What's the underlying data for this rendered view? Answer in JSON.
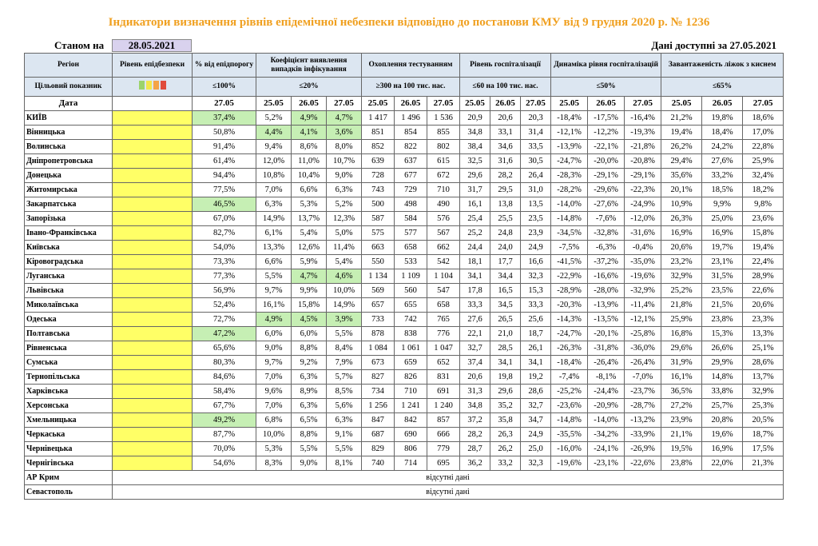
{
  "header": {
    "title": "Індикатори визначення рівнів епідемічної небезпеки відповідно до постанови КМУ від 9 грудня 2020 р. № 1236",
    "as_of_label": "Станом на",
    "as_of_date": "28.05.2021",
    "available_label": "Дані доступні за",
    "available_date": "27.05.2021"
  },
  "table": {
    "region_header": "Регіон",
    "target_header": "Цільовий показник",
    "date_header": "Дата",
    "level_header": "Рівень епідбезпеки",
    "groups": [
      {
        "title": "% від епідпорогу",
        "target": "≤100%",
        "dates": [
          "27.05"
        ]
      },
      {
        "title": "Коефіцієнт виявлення випадків інфікування",
        "target": "≤20%",
        "dates": [
          "25.05",
          "26.05",
          "27.05"
        ]
      },
      {
        "title": "Охоплення тестуванням",
        "target": "≥300 на 100 тис. нас.",
        "dates": [
          "25.05",
          "26.05",
          "27.05"
        ]
      },
      {
        "title": "Рівень госпіталізації",
        "target": "≤60 на 100 тис. нас.",
        "dates": [
          "25.05",
          "26.05",
          "27.05"
        ]
      },
      {
        "title": "Динаміка рівня госпіталізацій",
        "target": "≤50%",
        "dates": [
          "25.05",
          "26.05",
          "27.05"
        ]
      },
      {
        "title": "Завантаженість ліжок з киснем",
        "target": "≤65%",
        "dates": [
          "25.05",
          "26.05",
          "27.05"
        ]
      }
    ],
    "rows": [
      {
        "region": "КИЇВ",
        "values": [
          "37,4%",
          "5,2%",
          "4,9%",
          "4,7%",
          "1 417",
          "1 496",
          "1 536",
          "20,9",
          "20,6",
          "20,3",
          "-18,4%",
          "-17,5%",
          "-16,4%",
          "21,2%",
          "19,8%",
          "18,6%"
        ]
      },
      {
        "region": "Вінницька",
        "values": [
          "50,8%",
          "4,4%",
          "4,1%",
          "3,6%",
          "851",
          "854",
          "855",
          "34,8",
          "33,1",
          "31,4",
          "-12,1%",
          "-12,2%",
          "-19,3%",
          "19,4%",
          "18,4%",
          "17,0%"
        ]
      },
      {
        "region": "Волинська",
        "values": [
          "91,4%",
          "9,4%",
          "8,6%",
          "8,0%",
          "852",
          "822",
          "802",
          "38,4",
          "34,6",
          "33,5",
          "-13,9%",
          "-22,1%",
          "-21,8%",
          "26,2%",
          "24,2%",
          "22,8%"
        ]
      },
      {
        "region": "Дніпропетровська",
        "values": [
          "61,4%",
          "12,0%",
          "11,0%",
          "10,7%",
          "639",
          "637",
          "615",
          "32,5",
          "31,6",
          "30,5",
          "-24,7%",
          "-20,0%",
          "-20,8%",
          "29,4%",
          "27,6%",
          "25,9%"
        ]
      },
      {
        "region": "Донецька",
        "values": [
          "94,4%",
          "10,8%",
          "10,4%",
          "9,0%",
          "728",
          "677",
          "672",
          "29,6",
          "28,2",
          "26,4",
          "-28,3%",
          "-29,1%",
          "-29,1%",
          "35,6%",
          "33,2%",
          "32,4%"
        ]
      },
      {
        "region": "Житомирська",
        "values": [
          "77,5%",
          "7,0%",
          "6,6%",
          "6,3%",
          "743",
          "729",
          "710",
          "31,7",
          "29,5",
          "31,0",
          "-28,2%",
          "-29,6%",
          "-22,3%",
          "20,1%",
          "18,5%",
          "18,2%"
        ]
      },
      {
        "region": "Закарпатська",
        "values": [
          "46,5%",
          "6,3%",
          "5,3%",
          "5,2%",
          "500",
          "498",
          "490",
          "16,1",
          "13,8",
          "13,5",
          "-14,0%",
          "-27,6%",
          "-24,9%",
          "10,9%",
          "9,9%",
          "9,8%"
        ]
      },
      {
        "region": "Запорізька",
        "values": [
          "67,0%",
          "14,9%",
          "13,7%",
          "12,3%",
          "587",
          "584",
          "576",
          "25,4",
          "25,5",
          "23,5",
          "-14,8%",
          "-7,6%",
          "-12,0%",
          "26,3%",
          "25,0%",
          "23,6%"
        ]
      },
      {
        "region": "Івано-Франківська",
        "values": [
          "82,7%",
          "6,1%",
          "5,4%",
          "5,0%",
          "575",
          "577",
          "567",
          "25,2",
          "24,8",
          "23,9",
          "-34,5%",
          "-32,8%",
          "-31,6%",
          "16,9%",
          "16,9%",
          "15,8%"
        ]
      },
      {
        "region": "Київська",
        "values": [
          "54,0%",
          "13,3%",
          "12,6%",
          "11,4%",
          "663",
          "658",
          "662",
          "24,4",
          "24,0",
          "24,9",
          "-7,5%",
          "-6,3%",
          "-0,4%",
          "20,6%",
          "19,7%",
          "19,4%"
        ]
      },
      {
        "region": "Кіровоградська",
        "values": [
          "73,3%",
          "6,6%",
          "5,9%",
          "5,4%",
          "550",
          "533",
          "542",
          "18,1",
          "17,7",
          "16,6",
          "-41,5%",
          "-37,2%",
          "-35,0%",
          "23,2%",
          "23,1%",
          "22,4%"
        ]
      },
      {
        "region": "Луганська",
        "values": [
          "77,3%",
          "5,5%",
          "4,7%",
          "4,6%",
          "1 134",
          "1 109",
          "1 104",
          "34,1",
          "34,4",
          "32,3",
          "-22,9%",
          "-16,6%",
          "-19,6%",
          "32,9%",
          "31,5%",
          "28,9%"
        ]
      },
      {
        "region": "Львівська",
        "values": [
          "56,9%",
          "9,7%",
          "9,9%",
          "10,0%",
          "569",
          "560",
          "547",
          "17,8",
          "16,5",
          "15,3",
          "-28,9%",
          "-28,0%",
          "-32,9%",
          "25,2%",
          "23,5%",
          "22,6%"
        ]
      },
      {
        "region": "Миколаївська",
        "values": [
          "52,4%",
          "16,1%",
          "15,8%",
          "14,9%",
          "657",
          "655",
          "658",
          "33,3",
          "34,5",
          "33,3",
          "-20,3%",
          "-13,9%",
          "-11,4%",
          "21,8%",
          "21,5%",
          "20,6%"
        ]
      },
      {
        "region": "Одеська",
        "values": [
          "72,7%",
          "4,9%",
          "4,5%",
          "3,9%",
          "733",
          "742",
          "765",
          "27,6",
          "26,5",
          "25,6",
          "-14,3%",
          "-13,5%",
          "-12,1%",
          "25,9%",
          "23,8%",
          "23,3%"
        ]
      },
      {
        "region": "Полтавська",
        "values": [
          "47,2%",
          "6,0%",
          "6,0%",
          "5,5%",
          "878",
          "838",
          "776",
          "22,1",
          "21,0",
          "18,7",
          "-24,7%",
          "-20,1%",
          "-25,8%",
          "16,8%",
          "15,3%",
          "13,3%"
        ]
      },
      {
        "region": "Рівненська",
        "values": [
          "65,6%",
          "9,0%",
          "8,8%",
          "8,4%",
          "1 084",
          "1 061",
          "1 047",
          "32,7",
          "28,5",
          "26,1",
          "-26,3%",
          "-31,8%",
          "-36,0%",
          "29,6%",
          "26,6%",
          "25,1%"
        ]
      },
      {
        "region": "Сумська",
        "values": [
          "80,3%",
          "9,7%",
          "9,2%",
          "7,9%",
          "673",
          "659",
          "652",
          "37,4",
          "34,1",
          "34,1",
          "-18,4%",
          "-26,4%",
          "-26,4%",
          "31,9%",
          "29,9%",
          "28,6%"
        ]
      },
      {
        "region": "Тернопільська",
        "values": [
          "84,6%",
          "7,0%",
          "6,3%",
          "5,7%",
          "827",
          "826",
          "831",
          "20,6",
          "19,8",
          "19,2",
          "-7,4%",
          "-8,1%",
          "-7,0%",
          "16,1%",
          "14,8%",
          "13,7%"
        ]
      },
      {
        "region": "Харківська",
        "values": [
          "58,4%",
          "9,6%",
          "8,9%",
          "8,5%",
          "734",
          "710",
          "691",
          "31,3",
          "29,6",
          "28,6",
          "-25,2%",
          "-24,4%",
          "-23,7%",
          "36,5%",
          "33,8%",
          "32,9%"
        ]
      },
      {
        "region": "Херсонська",
        "values": [
          "67,7%",
          "7,0%",
          "6,3%",
          "5,6%",
          "1 256",
          "1 241",
          "1 240",
          "34,8",
          "35,2",
          "32,7",
          "-23,6%",
          "-20,9%",
          "-28,7%",
          "27,2%",
          "25,7%",
          "25,3%"
        ]
      },
      {
        "region": "Хмельницька",
        "values": [
          "49,2%",
          "6,8%",
          "6,5%",
          "6,3%",
          "847",
          "842",
          "857",
          "37,2",
          "35,8",
          "34,7",
          "-14,8%",
          "-14,0%",
          "-13,2%",
          "23,9%",
          "20,8%",
          "20,5%"
        ]
      },
      {
        "region": "Черкаська",
        "values": [
          "87,7%",
          "10,0%",
          "8,8%",
          "9,1%",
          "687",
          "690",
          "666",
          "28,2",
          "26,3",
          "24,9",
          "-35,5%",
          "-34,2%",
          "-33,9%",
          "21,1%",
          "19,6%",
          "18,7%"
        ]
      },
      {
        "region": "Чернівецька",
        "values": [
          "70,0%",
          "5,3%",
          "5,5%",
          "5,5%",
          "829",
          "806",
          "779",
          "28,7",
          "26,2",
          "25,0",
          "-16,0%",
          "-24,1%",
          "-26,9%",
          "19,5%",
          "16,9%",
          "17,5%"
        ]
      },
      {
        "region": "Чернігівська",
        "values": [
          "54,6%",
          "8,3%",
          "9,0%",
          "8,1%",
          "740",
          "714",
          "695",
          "36,2",
          "33,2",
          "32,3",
          "-19,6%",
          "-23,1%",
          "-22,6%",
          "23,8%",
          "22,0%",
          "21,3%"
        ]
      },
      {
        "region": "АР Крим",
        "note": "відсутні дані"
      },
      {
        "region": "Севастополь",
        "note": "відсутні дані"
      }
    ]
  }
}
